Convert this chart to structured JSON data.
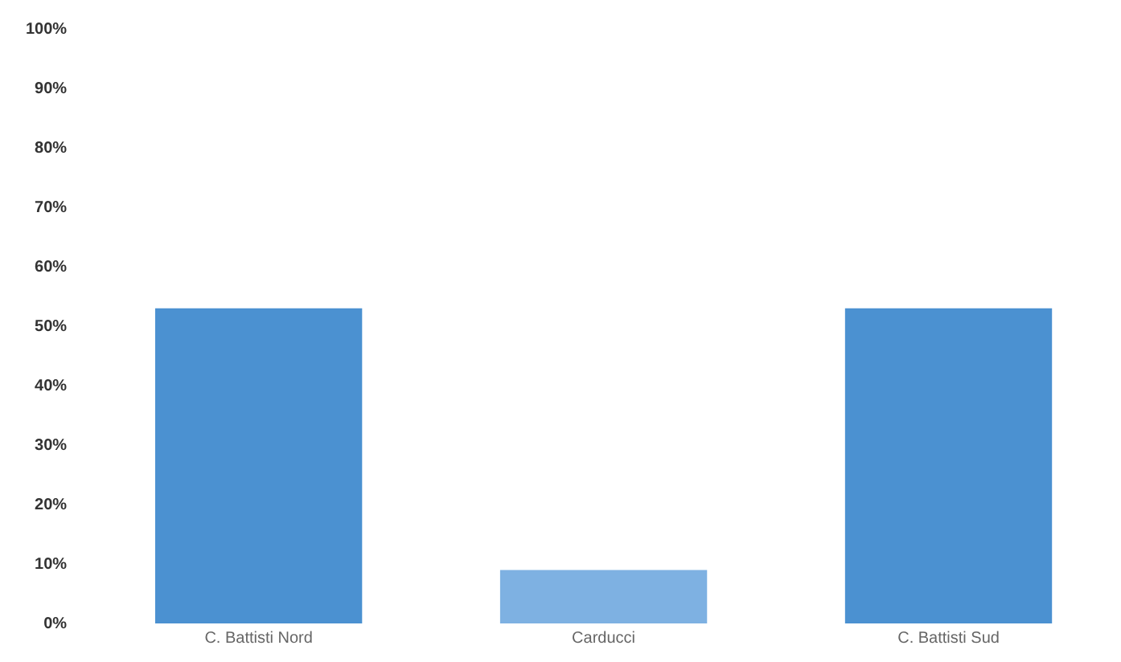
{
  "chart_data": {
    "type": "bar",
    "categories": [
      "C. Battisti Nord",
      "Carducci",
      "C. Battisti Sud"
    ],
    "values": [
      53,
      9,
      53
    ],
    "colors": [
      "#4b91d1",
      "#7eb1e2",
      "#4b91d1"
    ],
    "ylim": [
      0,
      100
    ],
    "yticks": [
      {
        "value": 0,
        "label": "0%"
      },
      {
        "value": 10,
        "label": "10%"
      },
      {
        "value": 20,
        "label": "20%"
      },
      {
        "value": 30,
        "label": "30%"
      },
      {
        "value": 40,
        "label": "40%"
      },
      {
        "value": 50,
        "label": "50%"
      },
      {
        "value": 60,
        "label": "60%"
      },
      {
        "value": 70,
        "label": "70%"
      },
      {
        "value": 80,
        "label": "80%"
      },
      {
        "value": 90,
        "label": "90%"
      },
      {
        "value": 100,
        "label": "100%"
      }
    ],
    "grid": false,
    "legend": false
  }
}
